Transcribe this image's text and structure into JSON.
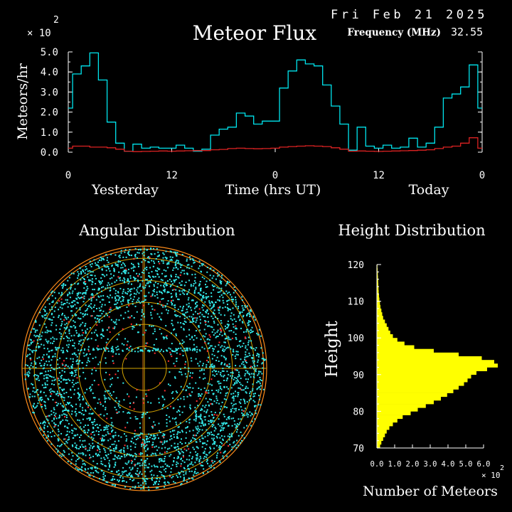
{
  "header": {
    "date": "Fri Feb 21 2025",
    "title": "Meteor Flux",
    "frequency_label": "Frequency (MHz)",
    "frequency_value": "32.55"
  },
  "colors": {
    "background": "#000000",
    "axes": "#ffffff",
    "flux_total": "#00e5ee",
    "flux_low": "#dd2222",
    "angular_points": "#33e8e8",
    "angular_points_red": "#ff3030",
    "angular_rings": "#ff8c1a",
    "angular_grid": "#d4a300",
    "height_bars": "#ffff00"
  },
  "chart_data": [
    {
      "id": "flux",
      "type": "line",
      "title": "Meteor Flux",
      "ylabel": "Meteors/hr",
      "y_multiplier_label": "× 10",
      "y_multiplier_exp": "2",
      "xlabel": "Time (hrs UT)",
      "day_labels": [
        "Yesterday",
        "Today"
      ],
      "xticks": [
        {
          "x": 0,
          "label": "0"
        },
        {
          "x": 12,
          "label": "12"
        },
        {
          "x": 24,
          "label": "0"
        },
        {
          "x": 36,
          "label": "12"
        },
        {
          "x": 48,
          "label": "0"
        }
      ],
      "ylim": [
        0,
        5
      ],
      "xlim": [
        0,
        48
      ],
      "yticks": [
        "0.0",
        "1.0",
        "2.0",
        "3.0",
        "4.0",
        "5.0"
      ],
      "series": [
        {
          "name": "",
          "style": "step",
          "values": [
            2.2,
            3.9,
            4.3,
            4.95,
            3.6,
            1.5,
            0.45,
            0.05,
            0.4,
            0.2,
            0.25,
            0.2,
            0.2,
            0.35,
            0.2,
            0.05,
            0.15,
            0.85,
            1.15,
            1.25,
            1.95,
            1.8,
            1.4,
            1.55,
            1.55,
            3.2,
            4.05,
            4.6,
            4.4,
            4.3,
            3.35,
            2.3,
            1.4,
            0.1,
            1.25,
            0.3,
            0.2,
            0.35,
            0.2,
            0.25,
            0.7,
            0.25,
            0.45,
            1.25,
            2.7,
            2.9,
            3.25,
            4.35,
            2.2
          ]
        },
        {
          "name": "",
          "style": "step",
          "values": [
            0.2,
            0.3,
            0.3,
            0.25,
            0.25,
            0.22,
            0.15,
            0.05,
            0.03,
            0.04,
            0.05,
            0.06,
            0.05,
            0.06,
            0.07,
            0.08,
            0.08,
            0.12,
            0.14,
            0.18,
            0.2,
            0.18,
            0.17,
            0.18,
            0.2,
            0.25,
            0.28,
            0.3,
            0.32,
            0.3,
            0.28,
            0.22,
            0.15,
            0.05,
            0.06,
            0.05,
            0.04,
            0.05,
            0.06,
            0.07,
            0.08,
            0.1,
            0.12,
            0.18,
            0.25,
            0.3,
            0.45,
            0.72,
            0.2
          ]
        }
      ]
    },
    {
      "id": "angular",
      "type": "scatter",
      "title": "Angular Distribution",
      "note": "polar scatter of meteor echo directions; dense ring of detections with sparse center"
    },
    {
      "id": "height",
      "type": "bar",
      "orientation": "horizontal",
      "title": "Height Distribution",
      "ylabel": "Height",
      "xlabel": "Number of Meteors",
      "x_multiplier_label": "× 10",
      "x_multiplier_exp": "2",
      "ylim": [
        70,
        120
      ],
      "yticks": [
        70,
        80,
        90,
        100,
        110,
        120
      ],
      "xlim": [
        0,
        6.0
      ],
      "xticks": [
        "0.0",
        "1.0",
        "2.0",
        "3.0",
        "4.0",
        "5.0",
        "6.0"
      ],
      "bins_start": 70,
      "bin_width": 1,
      "values": [
        0.18,
        0.25,
        0.35,
        0.45,
        0.55,
        0.7,
        0.9,
        1.15,
        1.45,
        1.9,
        2.3,
        2.75,
        3.2,
        3.6,
        3.95,
        4.3,
        4.6,
        4.9,
        5.1,
        5.3,
        5.6,
        6.2,
        7.5,
        6.6,
        5.9,
        4.6,
        3.2,
        2.1,
        1.55,
        1.15,
        0.9,
        0.75,
        0.65,
        0.55,
        0.45,
        0.35,
        0.3,
        0.25,
        0.2,
        0.17,
        0.14,
        0.12,
        0.1,
        0.09,
        0.08,
        0.07,
        0.06,
        0.05,
        0.04,
        0.03
      ]
    }
  ]
}
